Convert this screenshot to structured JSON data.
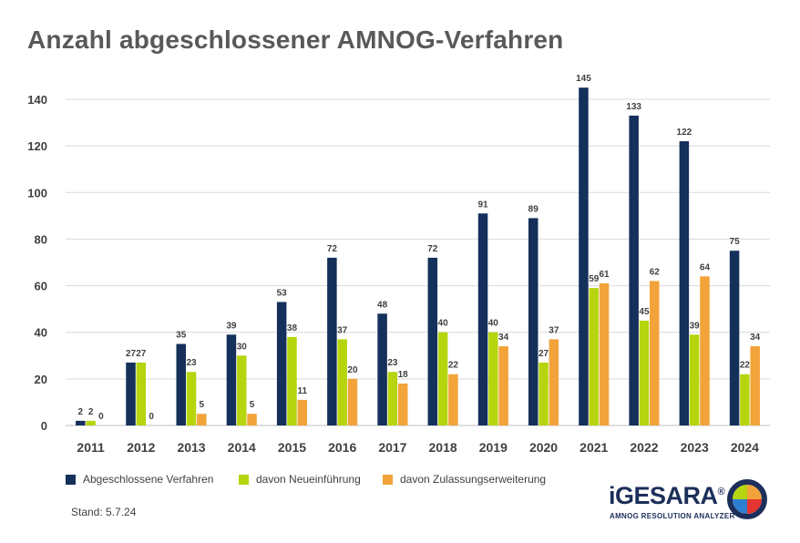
{
  "title": "Anzahl abgeschlossener AMNOG-Verfahren",
  "stand": "Stand: 5.7.24",
  "logo": {
    "wordmark": "iGESARA",
    "registered": "®",
    "subtitle": "AMNOG RESOLUTION ANALYZER"
  },
  "colors": {
    "series1": "#14305b",
    "series2": "#b6d50f",
    "series3": "#f2a33a",
    "grid": "#d9d9d9",
    "text": "#404040"
  },
  "chart_data": {
    "type": "bar",
    "title": "Anzahl abgeschlossener AMNOG-Verfahren",
    "xlabel": "",
    "ylabel": "",
    "ylim": [
      0,
      150
    ],
    "yticks": [
      0,
      20,
      40,
      60,
      80,
      100,
      120,
      140
    ],
    "grid": true,
    "legend_position": "bottom",
    "categories": [
      "2011",
      "2012",
      "2013",
      "2014",
      "2015",
      "2016",
      "2017",
      "2018",
      "2019",
      "2020",
      "2021",
      "2022",
      "2023",
      "2024"
    ],
    "series": [
      {
        "name": "Abgeschlossene Verfahren",
        "values": [
          2,
          27,
          35,
          39,
          53,
          72,
          48,
          72,
          91,
          89,
          145,
          133,
          122,
          75
        ]
      },
      {
        "name": "davon Neueinführung",
        "values": [
          2,
          27,
          23,
          30,
          38,
          37,
          23,
          40,
          40,
          27,
          59,
          45,
          39,
          22
        ]
      },
      {
        "name": "davon Zulassungserweiterung",
        "values": [
          0,
          0,
          5,
          5,
          11,
          20,
          18,
          22,
          34,
          37,
          61,
          62,
          64,
          34
        ]
      }
    ]
  }
}
